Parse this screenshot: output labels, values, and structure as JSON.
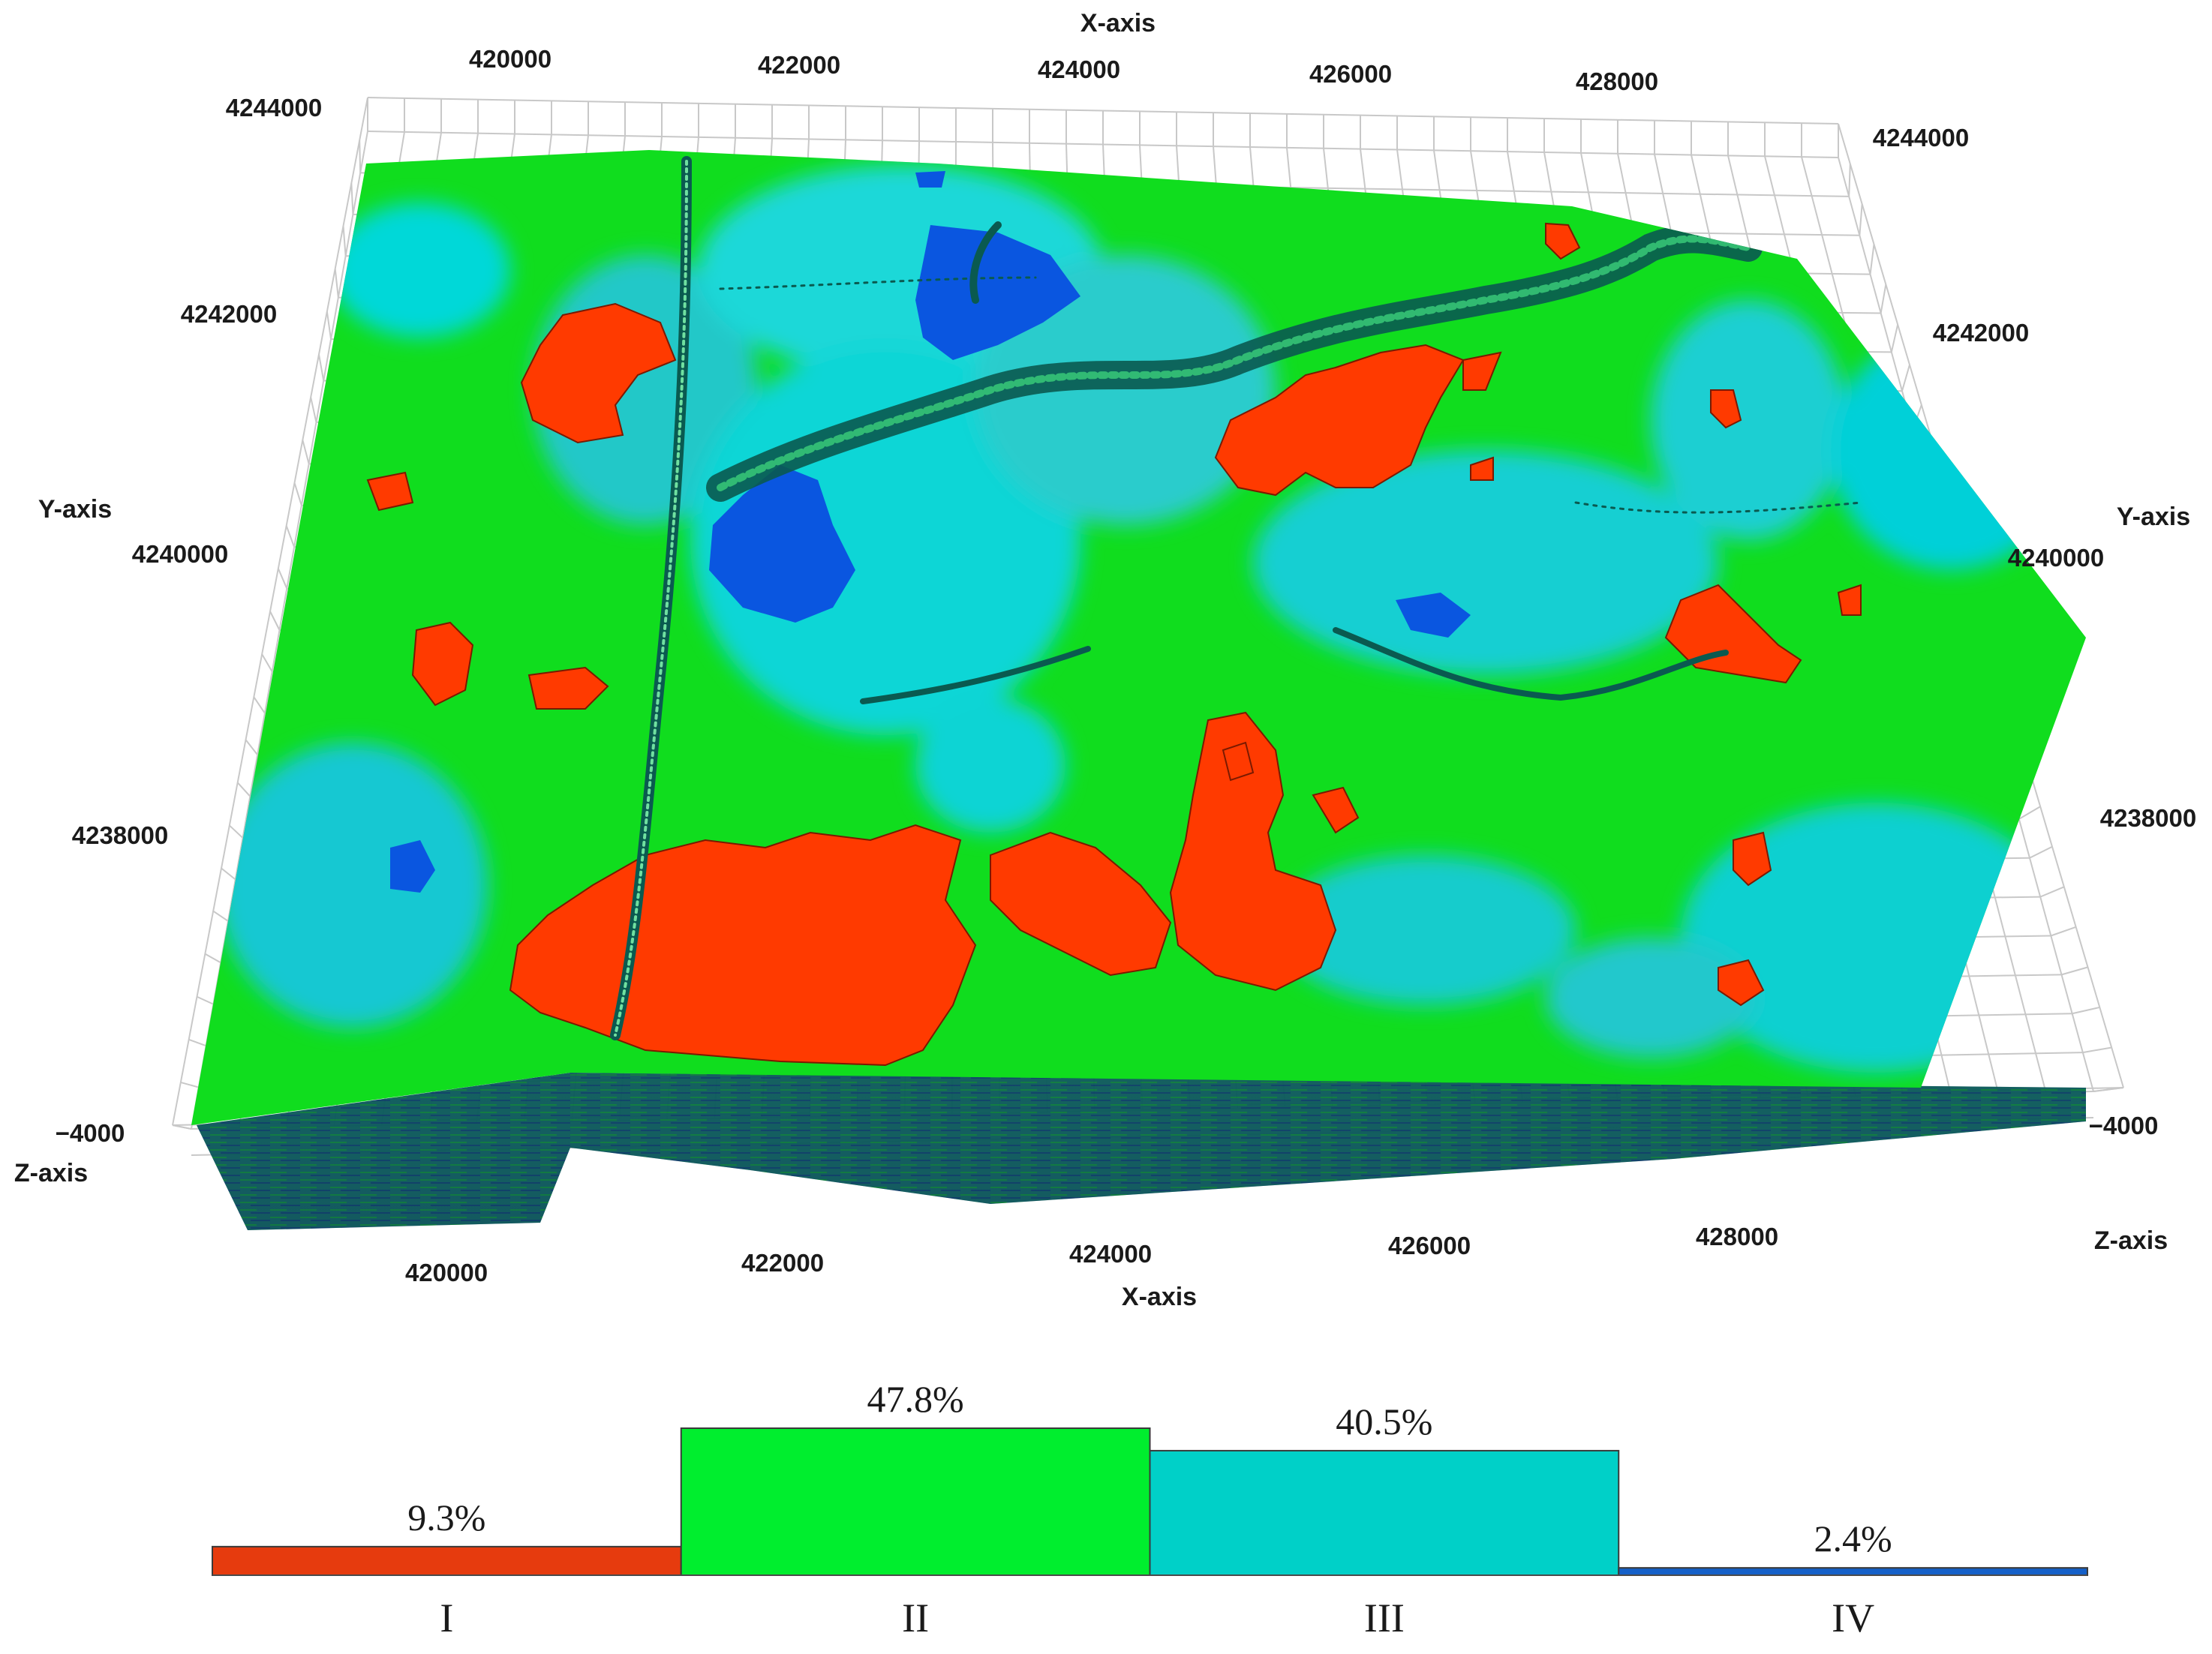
{
  "model_3d": {
    "x_axis_label": "X-axis",
    "y_axis_label": "Y-axis",
    "z_axis_label": "Z-axis",
    "top_x_ticks": [
      "420000",
      "422000",
      "424000",
      "426000",
      "428000"
    ],
    "bottom_x_ticks": [
      "420000",
      "422000",
      "424000",
      "426000",
      "428000"
    ],
    "left_y_ticks": [
      "4244000",
      "4242000",
      "4240000",
      "4238000"
    ],
    "right_y_ticks": [
      "4244000",
      "4242000",
      "4240000",
      "4238000"
    ],
    "z_tick": "−4000",
    "facies_colors": {
      "I": "#ff3a00",
      "II": "#00dd22",
      "III": "#00dcdc",
      "IV": "#0a56e0"
    }
  },
  "chart_data": {
    "type": "bar",
    "categories": [
      "I",
      "II",
      "III",
      "IV"
    ],
    "values": [
      9.3,
      47.8,
      40.5,
      2.4
    ],
    "value_labels": [
      "9.3%",
      "47.8%",
      "40.5%",
      "2.4%"
    ],
    "unit": "%",
    "colors": [
      "#e63b0e",
      "#00ee2e",
      "#00d0c8",
      "#1560c8"
    ],
    "ylim": [
      0,
      47.8
    ],
    "title": "",
    "xlabel": "",
    "ylabel": ""
  }
}
